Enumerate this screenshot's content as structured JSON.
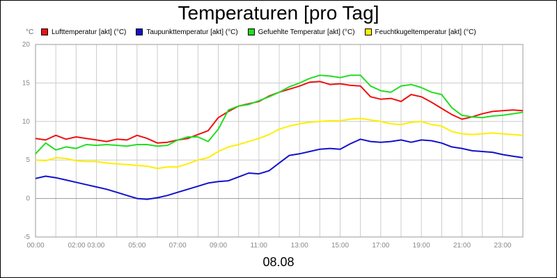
{
  "title": "Temperaturen [pro Tag]",
  "date_label": "08.08",
  "unit_label": "°C",
  "chart_data": {
    "type": "line",
    "title": "Temperaturen [pro Tag]",
    "xlabel": "08.08",
    "ylabel": "°C",
    "x_ticks": [
      "00:00",
      "02:00 03:00",
      "05:00",
      "07:00",
      "09:00",
      "11:00",
      "13:00",
      "15:00",
      "17:00",
      "19:00",
      "21:00",
      "23:00"
    ],
    "y_ticks": [
      -5,
      0,
      5,
      10,
      15,
      20
    ],
    "xlim": [
      0,
      24
    ],
    "ylim": [
      -5,
      20
    ],
    "grid": true,
    "legend": "top",
    "x": [
      0,
      0.5,
      1,
      1.5,
      2,
      2.5,
      3,
      3.5,
      4,
      4.5,
      5,
      5.5,
      6,
      6.5,
      7,
      7.5,
      8,
      8.5,
      9,
      9.5,
      10,
      10.5,
      11,
      11.5,
      12,
      12.5,
      13,
      13.5,
      14,
      14.5,
      15,
      15.5,
      16,
      16.5,
      17,
      17.5,
      18,
      18.5,
      19,
      19.5,
      20,
      20.5,
      21,
      21.5,
      22,
      22.5,
      23,
      23.5,
      24
    ],
    "series": [
      {
        "name": "Lufttemperatur [akt] (°C)",
        "color": "#ee1111",
        "values": [
          7.8,
          7.6,
          8.2,
          7.7,
          8.0,
          7.8,
          7.6,
          7.4,
          7.7,
          7.6,
          8.2,
          7.8,
          7.2,
          7.3,
          7.6,
          7.8,
          8.3,
          8.8,
          10.5,
          11.3,
          12.0,
          12.3,
          12.6,
          13.3,
          13.8,
          14.2,
          14.6,
          15.1,
          15.2,
          14.8,
          14.9,
          14.7,
          14.6,
          13.2,
          12.9,
          13.0,
          12.6,
          13.5,
          13.2,
          12.5,
          11.7,
          10.9,
          10.3,
          10.6,
          11.0,
          11.3,
          11.4,
          11.5,
          11.4
        ]
      },
      {
        "name": "Taupunkttemperatur [akt] (°C)",
        "color": "#1111cc",
        "values": [
          2.6,
          2.9,
          2.7,
          2.4,
          2.1,
          1.8,
          1.5,
          1.2,
          0.8,
          0.4,
          0.0,
          -0.1,
          0.1,
          0.4,
          0.8,
          1.2,
          1.6,
          2.0,
          2.2,
          2.3,
          2.8,
          3.3,
          3.2,
          3.6,
          4.6,
          5.6,
          5.8,
          6.1,
          6.4,
          6.5,
          6.4,
          7.1,
          7.7,
          7.4,
          7.3,
          7.4,
          7.6,
          7.3,
          7.6,
          7.5,
          7.2,
          6.7,
          6.5,
          6.2,
          6.1,
          6.0,
          5.7,
          5.5,
          5.3
        ]
      },
      {
        "name": "Gefuehlte Temperatur [akt] (°C)",
        "color": "#22dd22",
        "values": [
          5.8,
          7.2,
          6.3,
          6.7,
          6.5,
          7.0,
          6.9,
          7.0,
          6.9,
          6.8,
          7.0,
          7.0,
          6.8,
          6.9,
          7.6,
          8.0,
          8.0,
          7.4,
          9.0,
          11.5,
          12.0,
          12.2,
          12.7,
          13.2,
          13.8,
          14.5,
          15.0,
          15.6,
          16.0,
          15.9,
          15.7,
          16.0,
          16.0,
          14.6,
          14.0,
          13.8,
          14.6,
          14.8,
          14.4,
          13.8,
          13.5,
          11.8,
          10.8,
          10.6,
          10.5,
          10.7,
          10.8,
          11.0,
          11.2
        ]
      },
      {
        "name": "Feuchtkugeltemperatur [akt] (°C)",
        "color": "#ffee00",
        "values": [
          5.0,
          4.9,
          5.3,
          5.2,
          4.9,
          4.8,
          4.8,
          4.6,
          4.5,
          4.4,
          4.3,
          4.2,
          3.9,
          4.1,
          4.1,
          4.5,
          5.0,
          5.3,
          6.1,
          6.7,
          7.0,
          7.4,
          7.8,
          8.3,
          9.0,
          9.4,
          9.7,
          9.9,
          10.0,
          10.1,
          10.1,
          10.3,
          10.4,
          10.2,
          10.0,
          9.7,
          9.6,
          9.9,
          10.0,
          9.6,
          9.4,
          8.7,
          8.4,
          8.3,
          8.4,
          8.5,
          8.4,
          8.3,
          8.2
        ]
      }
    ]
  }
}
